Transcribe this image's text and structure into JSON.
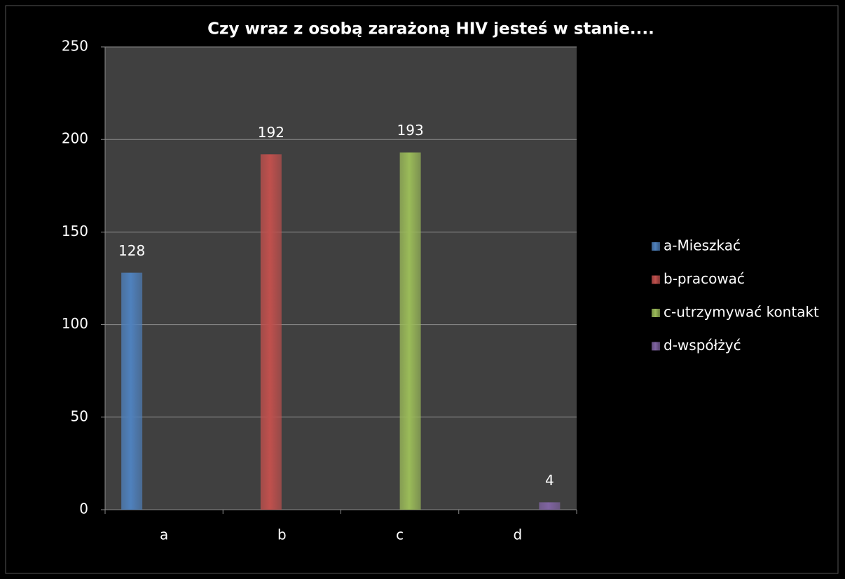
{
  "chart_data": {
    "type": "bar",
    "title": "Czy wraz z osobą zarażoną HIV jesteś w stanie....",
    "categories": [
      "a",
      "b",
      "c",
      "d"
    ],
    "series": [
      {
        "name": "a-Mieszkać",
        "color": "#4f81bd",
        "values": [
          128,
          null,
          null,
          null
        ]
      },
      {
        "name": "b-pracować",
        "color": "#c0504d",
        "values": [
          null,
          192,
          null,
          null
        ]
      },
      {
        "name": "c-utrzymywać kontakt",
        "color": "#9bbb59",
        "values": [
          null,
          null,
          193,
          null
        ]
      },
      {
        "name": "d-współżyć",
        "color": "#8064a2",
        "values": [
          null,
          null,
          null,
          4
        ]
      }
    ],
    "ylim": [
      0,
      250
    ],
    "yticks": [
      0,
      50,
      100,
      150,
      200,
      250
    ],
    "grid": true,
    "legend": "right"
  }
}
